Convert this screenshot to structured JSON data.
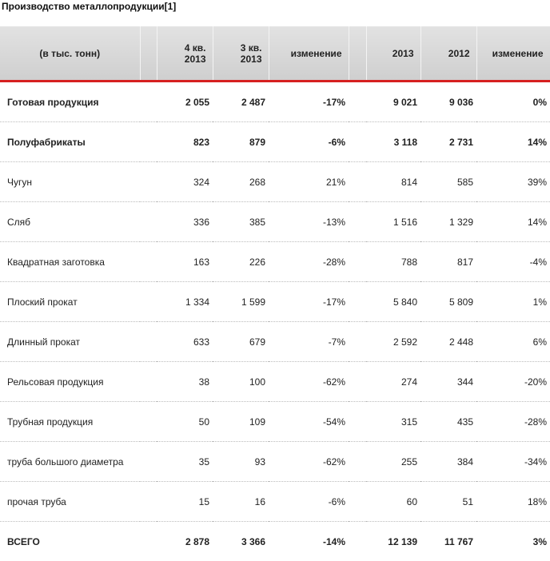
{
  "title": "Производство металлопродукции[1]",
  "header": {
    "label": "(в тыс. тонн)",
    "q4_line1": "4 кв.",
    "q4_line2": "2013",
    "q3_line1": "3 кв.",
    "q3_line2": "2013",
    "change_q": "изменение",
    "y2013": "2013",
    "y2012": "2012",
    "change_y": "изменение"
  },
  "rows": [
    {
      "name": "Готовая продукция",
      "q4": "2 055",
      "q3": "2 487",
      "chq": "-17%",
      "y13": "9 021",
      "y12": "9 036",
      "chy": "0%",
      "bold": true
    },
    {
      "name": "Полуфабрикаты",
      "q4": "823",
      "q3": "879",
      "chq": "-6%",
      "y13": "3 118",
      "y12": "2 731",
      "chy": "14%",
      "bold": true
    },
    {
      "name": "Чугун",
      "q4": "324",
      "q3": "268",
      "chq": "21%",
      "y13": "814",
      "y12": "585",
      "chy": "39%",
      "bold": false
    },
    {
      "name": "Сляб",
      "q4": "336",
      "q3": "385",
      "chq": "-13%",
      "y13": "1 516",
      "y12": "1 329",
      "chy": "14%",
      "bold": false
    },
    {
      "name": "Квадратная заготовка",
      "q4": "163",
      "q3": "226",
      "chq": "-28%",
      "y13": "788",
      "y12": "817",
      "chy": "-4%",
      "bold": false
    },
    {
      "name": "Плоский прокат",
      "q4": "1 334",
      "q3": "1 599",
      "chq": "-17%",
      "y13": "5 840",
      "y12": "5 809",
      "chy": "1%",
      "bold": false
    },
    {
      "name": "Длинный прокат",
      "q4": "633",
      "q3": "679",
      "chq": "-7%",
      "y13": "2 592",
      "y12": "2 448",
      "chy": "6%",
      "bold": false
    },
    {
      "name": "Рельсовая продукция",
      "q4": "38",
      "q3": "100",
      "chq": "-62%",
      "y13": "274",
      "y12": "344",
      "chy": "-20%",
      "bold": false
    },
    {
      "name": "Трубная продукция",
      "q4": "50",
      "q3": "109",
      "chq": "-54%",
      "y13": "315",
      "y12": "435",
      "chy": "-28%",
      "bold": false
    },
    {
      "name": "труба большого диаметра",
      "q4": "35",
      "q3": "93",
      "chq": "-62%",
      "y13": "255",
      "y12": "384",
      "chy": "-34%",
      "bold": false
    },
    {
      "name": "прочая труба",
      "q4": "15",
      "q3": "16",
      "chq": "-6%",
      "y13": "60",
      "y12": "51",
      "chy": "18%",
      "bold": false
    },
    {
      "name": "ВСЕГО",
      "q4": "2 878",
      "q3": "3 366",
      "chq": "-14%",
      "y13": "12 139",
      "y12": "11 767",
      "chy": "3%",
      "bold": true
    }
  ]
}
